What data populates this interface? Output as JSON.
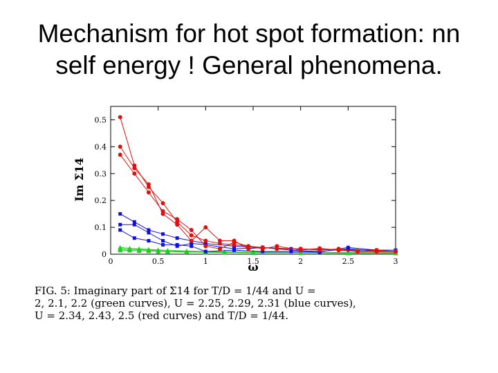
{
  "slide": {
    "title_line1": "Mechanism for hot spot formation: nn",
    "title_line2": "self energy !  General  phenomena."
  },
  "caption": {
    "line1": "FIG. 5:  Imaginary  part  of  Σ14  for  T/D  =  1/44  and  U  =",
    "line2": "2, 2.1, 2.2  (green curves),  U = 2.25, 2.29, 2.31  (blue curves),",
    "line3": "U = 2.34, 2.43, 2.5 (red curves) and T/D = 1/44."
  },
  "chart_data": {
    "type": "line",
    "xlabel": "ω",
    "ylabel": "Im Σ14",
    "xlim": [
      0,
      3
    ],
    "ylim": [
      0,
      0.55
    ],
    "xticks": [
      "0",
      "0.5",
      "1",
      "1.5",
      "2",
      "2.5",
      "3"
    ],
    "yticks": [
      "0",
      "0.1",
      "0.2",
      "0.3",
      "0.4",
      "0.5"
    ],
    "grid": false,
    "colors": {
      "green": "#22cc22",
      "blue": "#1010dd",
      "red": "#dd1111"
    },
    "series": [
      {
        "group": "green",
        "x": [
          0.1,
          0.2,
          0.3,
          0.4,
          0.5,
          0.6,
          0.8,
          1.0,
          1.2,
          1.5,
          2.0,
          2.5,
          3.0
        ],
        "y": [
          0.025,
          0.022,
          0.02,
          0.018,
          0.016,
          0.014,
          0.012,
          0.01,
          0.009,
          0.008,
          0.007,
          0.006,
          0.006
        ]
      },
      {
        "group": "green",
        "x": [
          0.1,
          0.2,
          0.3,
          0.4,
          0.5,
          0.6,
          0.8,
          1.0,
          1.2,
          1.5,
          2.0,
          2.5,
          3.0
        ],
        "y": [
          0.02,
          0.018,
          0.017,
          0.015,
          0.013,
          0.011,
          0.01,
          0.008,
          0.007,
          0.006,
          0.006,
          0.005,
          0.005
        ]
      },
      {
        "group": "green",
        "x": [
          0.1,
          0.2,
          0.3,
          0.4,
          0.5,
          0.6,
          0.8,
          1.0,
          1.2,
          1.5,
          2.0,
          2.5,
          3.0
        ],
        "y": [
          0.015,
          0.014,
          0.013,
          0.012,
          0.011,
          0.01,
          0.008,
          0.007,
          0.006,
          0.005,
          0.005,
          0.004,
          0.004
        ]
      },
      {
        "group": "blue",
        "x": [
          0.1,
          0.25,
          0.4,
          0.55,
          0.7,
          0.85,
          1.0,
          1.3,
          1.6,
          1.9,
          2.2,
          2.5,
          2.8,
          3.0
        ],
        "y": [
          0.15,
          0.12,
          0.09,
          0.075,
          0.06,
          0.05,
          0.04,
          0.03,
          0.025,
          0.02,
          0.018,
          0.016,
          0.015,
          0.015
        ]
      },
      {
        "group": "blue",
        "x": [
          0.1,
          0.25,
          0.4,
          0.55,
          0.7,
          0.85,
          1.0,
          1.3,
          1.6,
          1.9,
          2.2,
          2.5,
          2.8,
          3.0
        ],
        "y": [
          0.11,
          0.11,
          0.08,
          0.05,
          0.03,
          0.04,
          0.035,
          0.02,
          0.025,
          0.015,
          0.01,
          0.02,
          0.012,
          0.01
        ]
      },
      {
        "group": "blue",
        "x": [
          0.1,
          0.25,
          0.4,
          0.55,
          0.7,
          0.85,
          1.0,
          1.3,
          1.6,
          1.9,
          2.2,
          2.5,
          2.8,
          3.0
        ],
        "y": [
          0.09,
          0.06,
          0.05,
          0.035,
          0.035,
          0.03,
          0.01,
          0.015,
          0.01,
          0.01,
          0.008,
          0.025,
          0.015,
          0.01
        ]
      },
      {
        "group": "red",
        "x": [
          0.1,
          0.25,
          0.4,
          0.55,
          0.7,
          0.85,
          1.0,
          1.15,
          1.3,
          1.45,
          1.6,
          1.75,
          2.0,
          2.2,
          2.4,
          2.6,
          2.8,
          3.0
        ],
        "y": [
          0.51,
          0.33,
          0.25,
          0.19,
          0.12,
          0.07,
          0.05,
          0.04,
          0.035,
          0.03,
          0.025,
          0.02,
          0.02,
          0.018,
          0.015,
          0.01,
          0.01,
          0.01
        ]
      },
      {
        "group": "red",
        "x": [
          0.1,
          0.25,
          0.4,
          0.55,
          0.7,
          0.85,
          1.0,
          1.15,
          1.3,
          1.45,
          1.6,
          1.75,
          2.0,
          2.2,
          2.4,
          2.6,
          2.8,
          3.0
        ],
        "y": [
          0.4,
          0.32,
          0.26,
          0.15,
          0.11,
          0.05,
          0.1,
          0.05,
          0.05,
          0.02,
          0.025,
          0.02,
          0.02,
          0.015,
          0.02,
          0.01,
          0.015,
          0.01
        ]
      },
      {
        "group": "red",
        "x": [
          0.1,
          0.25,
          0.4,
          0.55,
          0.7,
          0.85,
          1.0,
          1.15,
          1.3,
          1.45,
          1.6,
          1.75,
          2.0,
          2.2,
          2.4,
          2.6,
          2.8,
          3.0
        ],
        "y": [
          0.37,
          0.3,
          0.23,
          0.16,
          0.13,
          0.09,
          0.03,
          0.02,
          0.045,
          0.03,
          0.02,
          0.03,
          0.015,
          0.022,
          0.015,
          0.012,
          0.01,
          0.01
        ]
      }
    ]
  }
}
